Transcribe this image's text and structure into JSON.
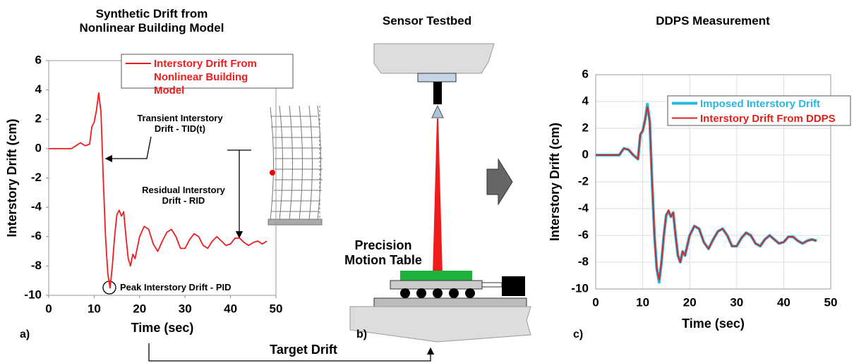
{
  "chart_data": [
    {
      "type": "line",
      "title": "Synthetic Drift from Nonlinear Building Model",
      "panel_label": "a)",
      "x_label": "Time (sec)",
      "y_label": "Interstory Drift (cm)",
      "xlim": [
        0,
        50
      ],
      "ylim": [
        -10,
        6
      ],
      "xticks": [
        0,
        10,
        20,
        30,
        40,
        50
      ],
      "yticks": [
        -10,
        -8,
        -6,
        -4,
        -2,
        0,
        2,
        4,
        6
      ],
      "grid": false,
      "legend": "upper right",
      "annotations": [
        "Transient Interstory Drift - TID(t)",
        "Residual Interstory Drift - RID",
        "Peak Interstory Drift - PID"
      ],
      "x": [
        0,
        5,
        6,
        7,
        8,
        9,
        9.5,
        10,
        10.5,
        11,
        11.5,
        12,
        12.5,
        13,
        13.5,
        14,
        14.5,
        15,
        15.5,
        16,
        16.5,
        17,
        17.5,
        18,
        18.5,
        19,
        20,
        21,
        22,
        23,
        24,
        25,
        26,
        27,
        28,
        29,
        30,
        31,
        32,
        33,
        34,
        35,
        36,
        37,
        38,
        39,
        40,
        41,
        42,
        43,
        44,
        45,
        46,
        47,
        48
      ],
      "series": [
        {
          "name": "Interstory Drift From Nonlinear Building Model",
          "color": "#ee1c1c",
          "values": [
            0,
            0,
            0.2,
            0.4,
            0.2,
            0.3,
            1.5,
            1.8,
            2.6,
            3.8,
            2.5,
            -2,
            -6,
            -8.5,
            -9.5,
            -8,
            -6,
            -4.5,
            -4.2,
            -4.6,
            -4.3,
            -6,
            -7.5,
            -8,
            -7.2,
            -7.5,
            -6,
            -5.3,
            -5.5,
            -6.5,
            -7,
            -6.3,
            -5.7,
            -5.5,
            -6,
            -6.8,
            -6.8,
            -6.2,
            -5.8,
            -6,
            -6.6,
            -6.8,
            -6.3,
            -6,
            -6.3,
            -6.6,
            -6.5,
            -6.1,
            -6.1,
            -6.4,
            -6.6,
            -6.4,
            -6.3,
            -6.5,
            -6.3
          ]
        }
      ]
    },
    {
      "type": "line",
      "title": "DDPS Measurement",
      "panel_label": "c)",
      "x_label": "Time (sec)",
      "y_label": "Interstory Drift (cm)",
      "xlim": [
        0,
        50
      ],
      "ylim": [
        -10,
        6
      ],
      "xticks": [
        0,
        10,
        20,
        30,
        40,
        50
      ],
      "yticks": [
        -10,
        -8,
        -6,
        -4,
        -2,
        0,
        2,
        4,
        6
      ],
      "grid": true,
      "legend": "upper right",
      "x": [
        0,
        5,
        6,
        7,
        8,
        9,
        9.5,
        10,
        10.5,
        11,
        11.5,
        12,
        12.5,
        13,
        13.5,
        14,
        14.5,
        15,
        15.5,
        16,
        16.5,
        17,
        17.5,
        18,
        18.5,
        19,
        20,
        21,
        22,
        23,
        24,
        25,
        26,
        27,
        28,
        29,
        30,
        31,
        32,
        33,
        34,
        35,
        36,
        37,
        38,
        39,
        40,
        41,
        42,
        43,
        44,
        45,
        46,
        47
      ],
      "series": [
        {
          "name": "Imposed Interstory Drift",
          "color": "#29b8e0",
          "values": [
            0,
            0,
            0.5,
            0.4,
            0,
            -0.3,
            1.5,
            1.8,
            2.6,
            3.8,
            2.5,
            -2,
            -6,
            -8.5,
            -9.5,
            -8,
            -6,
            -4.5,
            -4.2,
            -4.6,
            -4.3,
            -6,
            -7.5,
            -8,
            -7.2,
            -7.5,
            -6,
            -5.3,
            -5.5,
            -6.5,
            -7,
            -6.3,
            -5.7,
            -5.5,
            -6,
            -6.8,
            -6.8,
            -6.2,
            -5.8,
            -6,
            -6.6,
            -6.8,
            -6.3,
            -6,
            -6.3,
            -6.6,
            -6.5,
            -6.1,
            -6.1,
            -6.4,
            -6.6,
            -6.4,
            -6.3,
            -6.4
          ]
        },
        {
          "name": "Interstory Drift From DDPS",
          "color": "#e0201c",
          "values": [
            0,
            0,
            0.5,
            0.4,
            0,
            -0.3,
            1.6,
            1.8,
            2.6,
            3.6,
            2.5,
            -2,
            -6,
            -8.5,
            -9.3,
            -8,
            -6,
            -4.5,
            -4.1,
            -4.6,
            -4.3,
            -6,
            -7.5,
            -8,
            -7.2,
            -7.5,
            -6,
            -5.3,
            -5.5,
            -6.5,
            -7,
            -6.3,
            -5.7,
            -5.5,
            -6,
            -6.8,
            -6.8,
            -6.2,
            -5.8,
            -6,
            -6.6,
            -6.8,
            -6.3,
            -6,
            -6.3,
            -6.6,
            -6.5,
            -6.1,
            -6.1,
            -6.4,
            -6.6,
            -6.4,
            -6.3,
            -6.4
          ]
        }
      ]
    }
  ],
  "diagram": {
    "title": "Sensor Testbed",
    "table_label": "Precision Motion Table",
    "panel_label": "b)",
    "arrow_label": "Target Drift"
  }
}
